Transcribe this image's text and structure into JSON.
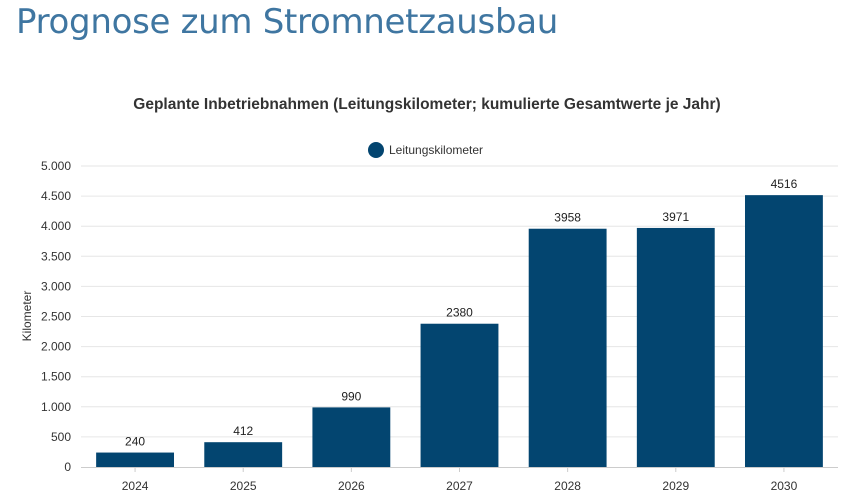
{
  "page": {
    "heading": "Prognose zum Stromnetzausbau"
  },
  "colors": {
    "heading": "#3f76a1",
    "bar": "#034570",
    "grid": "#e6e6e6",
    "axis": "#cccccc"
  },
  "chart_data": {
    "type": "bar",
    "title": "Geplante Inbetriebnahmen (Leitungskilometer; kumulierte Gesamtwerte je Jahr)",
    "xlabel": "",
    "ylabel": "Kilometer",
    "categories": [
      "2024",
      "2025",
      "2026",
      "2027",
      "2028",
      "2029",
      "2030"
    ],
    "series": [
      {
        "name": "Leitungskilometer",
        "values": [
          240,
          412,
          990,
          2380,
          3958,
          3971,
          4516
        ]
      }
    ],
    "data_labels": [
      "240",
      "412",
      "990",
      "2380",
      "3958",
      "3971",
      "4516"
    ],
    "ylim": [
      0,
      5000
    ],
    "yticks": [
      0,
      500,
      1000,
      1500,
      2000,
      2500,
      3000,
      3500,
      4000,
      4500,
      5000
    ],
    "ytick_labels": [
      "0",
      "500",
      "1.000",
      "1.500",
      "2.000",
      "2.500",
      "3.000",
      "3.500",
      "4.000",
      "4.500",
      "5.000"
    ],
    "grid": true,
    "legend_position": "top-center"
  }
}
